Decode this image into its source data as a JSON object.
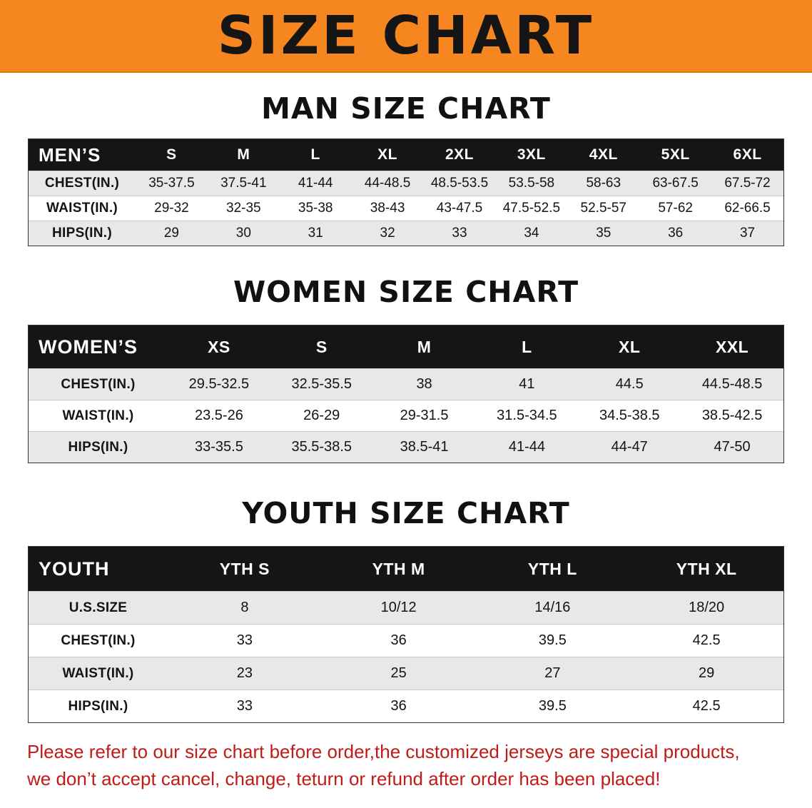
{
  "banner": {
    "title": "SIZE CHART"
  },
  "colors": {
    "banner_bg": "#F6861F",
    "table_header_bg": "#151515",
    "row_alt_bg": "#e8e8e8",
    "footer_text": "#C11B17"
  },
  "chart_data": [
    {
      "type": "table",
      "title": "MAN SIZE CHART",
      "columns": [
        "MEN’S",
        "S",
        "M",
        "L",
        "XL",
        "2XL",
        "3XL",
        "4XL",
        "5XL",
        "6XL"
      ],
      "rows": [
        [
          "CHEST(IN.)",
          "35-37.5",
          "37.5-41",
          "41-44",
          "44-48.5",
          "48.5-53.5",
          "53.5-58",
          "58-63",
          "63-67.5",
          "67.5-72"
        ],
        [
          "WAIST(IN.)",
          "29-32",
          "32-35",
          "35-38",
          "38-43",
          "43-47.5",
          "47.5-52.5",
          "52.5-57",
          "57-62",
          "62-66.5"
        ],
        [
          "HIPS(IN.)",
          "29",
          "30",
          "31",
          "32",
          "33",
          "34",
          "35",
          "36",
          "37"
        ]
      ]
    },
    {
      "type": "table",
      "title": "WOMEN SIZE CHART",
      "columns": [
        "WOMEN’S",
        "XS",
        "S",
        "M",
        "L",
        "XL",
        "XXL"
      ],
      "rows": [
        [
          "CHEST(IN.)",
          "29.5-32.5",
          "32.5-35.5",
          "38",
          "41",
          "44.5",
          "44.5-48.5"
        ],
        [
          "WAIST(IN.)",
          "23.5-26",
          "26-29",
          "29-31.5",
          "31.5-34.5",
          "34.5-38.5",
          "38.5-42.5"
        ],
        [
          "HIPS(IN.)",
          "33-35.5",
          "35.5-38.5",
          "38.5-41",
          "41-44",
          "44-47",
          "47-50"
        ]
      ]
    },
    {
      "type": "table",
      "title": "YOUTH SIZE CHART",
      "columns": [
        "YOUTH",
        "YTH S",
        "YTH M",
        "YTH L",
        "YTH XL"
      ],
      "rows": [
        [
          "U.S.SIZE",
          "8",
          "10/12",
          "14/16",
          "18/20"
        ],
        [
          "CHEST(IN.)",
          "33",
          "36",
          "39.5",
          "42.5"
        ],
        [
          "WAIST(IN.)",
          "23",
          "25",
          "27",
          "29"
        ],
        [
          "HIPS(IN.)",
          "33",
          "36",
          "39.5",
          "42.5"
        ]
      ]
    }
  ],
  "footer": {
    "line1": "Please refer to our size chart before order,the customized jerseys are special products,",
    "line2": "we don’t accept cancel, change, teturn or refund after order has been placed!"
  }
}
